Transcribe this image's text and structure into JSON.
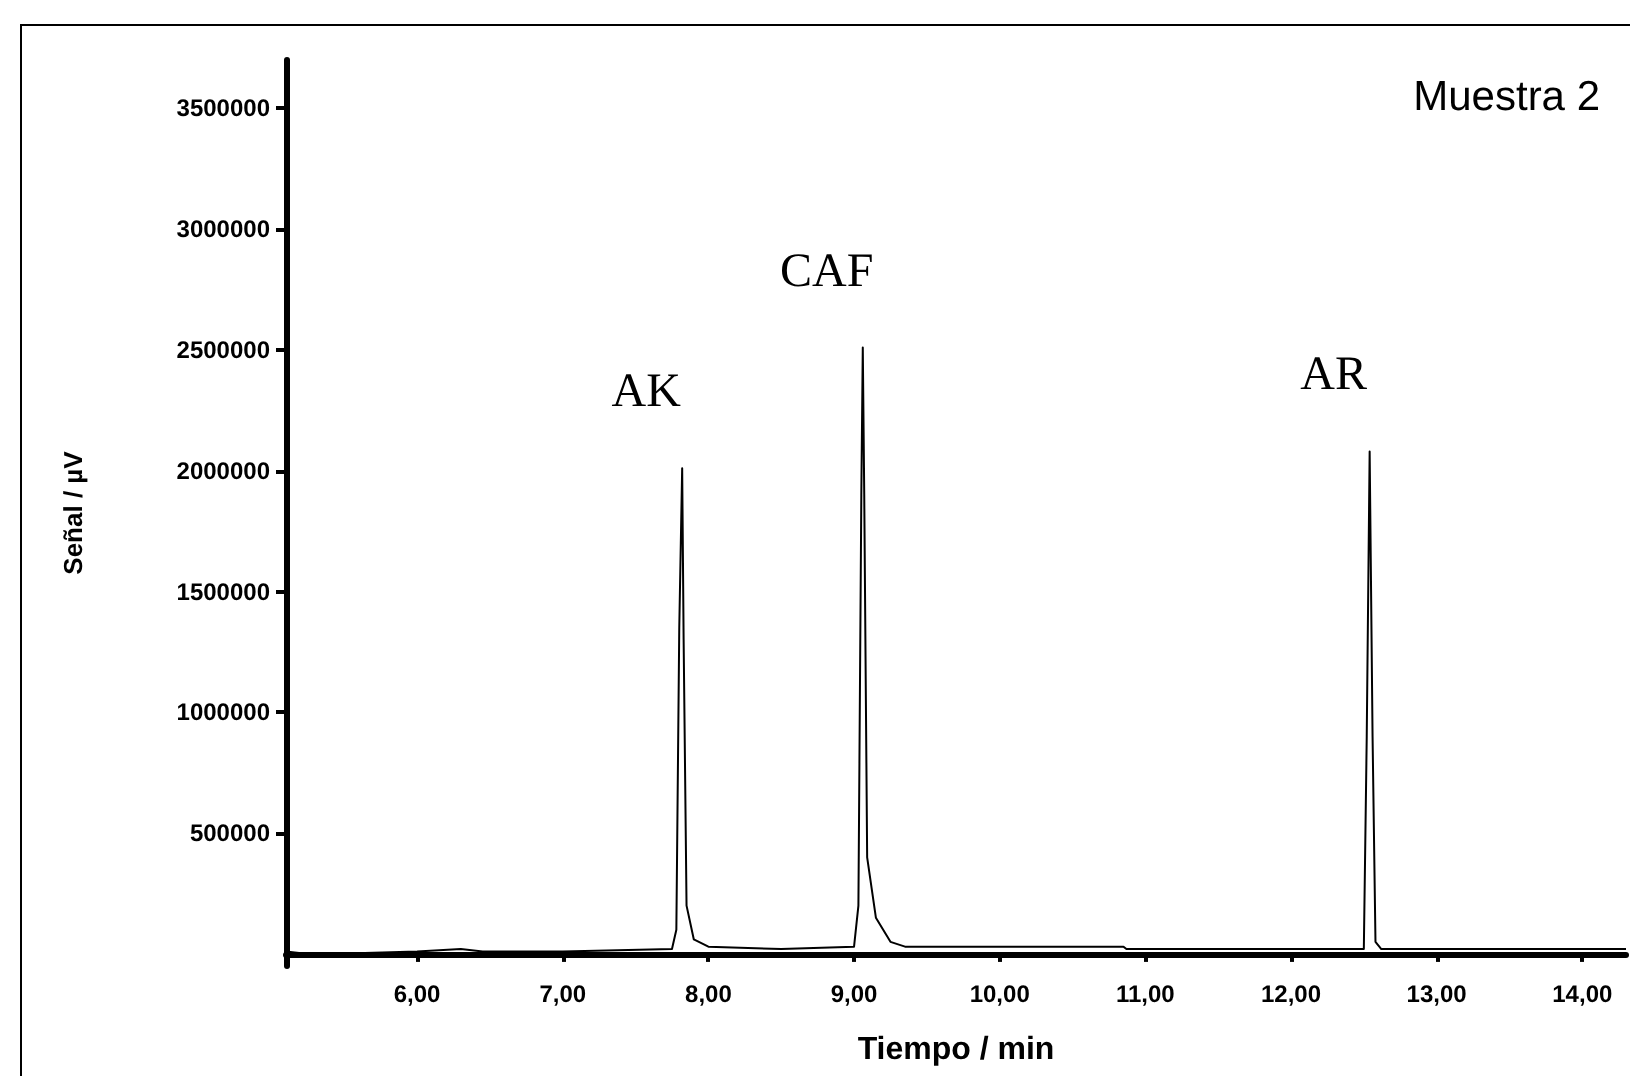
{
  "chart_data": {
    "type": "line",
    "xlabel": "Tiempo / min",
    "ylabel": "Señal / µV",
    "xlim": [
      5.1,
      14.3
    ],
    "ylim": [
      -50000,
      3700000
    ],
    "xticks": [
      {
        "value": 6,
        "label": "6,00"
      },
      {
        "value": 7,
        "label": "7,00"
      },
      {
        "value": 8,
        "label": "8,00"
      },
      {
        "value": 9,
        "label": "9,00"
      },
      {
        "value": 10,
        "label": "10,00"
      },
      {
        "value": 11,
        "label": "11,00"
      },
      {
        "value": 12,
        "label": "12,00"
      },
      {
        "value": 13,
        "label": "13,00"
      },
      {
        "value": 14,
        "label": "14,00"
      }
    ],
    "yticks": [
      500000,
      1000000,
      1500000,
      2000000,
      2500000,
      3000000,
      3500000
    ],
    "grid": false,
    "marker": "none",
    "line_style": "solid",
    "annotations": [
      {
        "text": "AK",
        "x": 7.82,
        "y": 2010000
      },
      {
        "text": "CAF",
        "x": 9.06,
        "y": 2510000
      },
      {
        "text": "AR",
        "x": 12.54,
        "y": 2080000
      },
      "Muestra 2"
    ],
    "series": [
      {
        "color": "#000000",
        "x": [
          5.1,
          5.25,
          5.4,
          6.0,
          6.3,
          6.45,
          7.0,
          7.75,
          7.78,
          7.8,
          7.82,
          7.83,
          7.85,
          7.9,
          8.0,
          8.5,
          9.0,
          9.03,
          9.05,
          9.06,
          9.07,
          9.09,
          9.15,
          9.25,
          9.35,
          10.0,
          10.85,
          10.87,
          12.0,
          12.5,
          12.52,
          12.54,
          12.56,
          12.58,
          12.62,
          14.3
        ],
        "values": [
          10000,
          0,
          0,
          10000,
          20000,
          10000,
          10000,
          20000,
          100000,
          1350000,
          2010000,
          1300000,
          200000,
          60000,
          30000,
          20000,
          30000,
          200000,
          1900000,
          2510000,
          1900000,
          400000,
          150000,
          50000,
          30000,
          30000,
          30000,
          20000,
          20000,
          20000,
          900000,
          2080000,
          900000,
          50000,
          20000,
          20000
        ]
      }
    ]
  }
}
